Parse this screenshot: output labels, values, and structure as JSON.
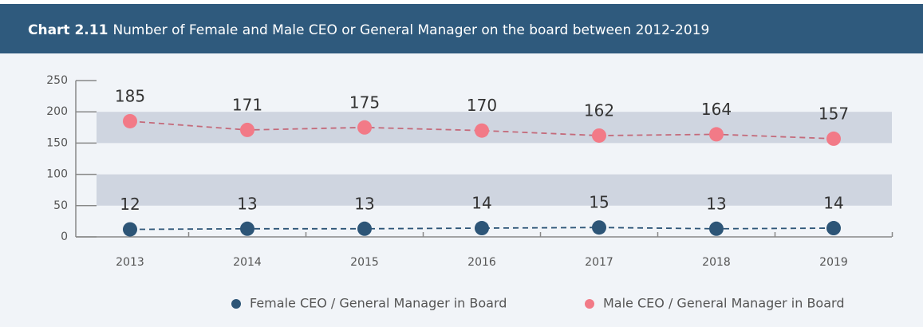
{
  "chart_data": {
    "type": "line",
    "title_label": "Chart 2.11",
    "title": "Number of Female and Male CEO or General Manager on the board between 2012-2019",
    "categories": [
      "2013",
      "2014",
      "2015",
      "2016",
      "2017",
      "2018",
      "2019"
    ],
    "series": [
      {
        "name": "Female CEO / General Manager in Board",
        "color": "#2d5577",
        "values": [
          12,
          13,
          13,
          14,
          15,
          13,
          14
        ]
      },
      {
        "name": "Male CEO / General Manager in Board",
        "color": "#f27a87",
        "values": [
          185,
          171,
          175,
          170,
          162,
          164,
          157
        ]
      }
    ],
    "ylim": [
      0,
      250
    ],
    "yticks": [
      0,
      50,
      100,
      150,
      200,
      250
    ],
    "bands": true,
    "legend": "bottom-right"
  }
}
